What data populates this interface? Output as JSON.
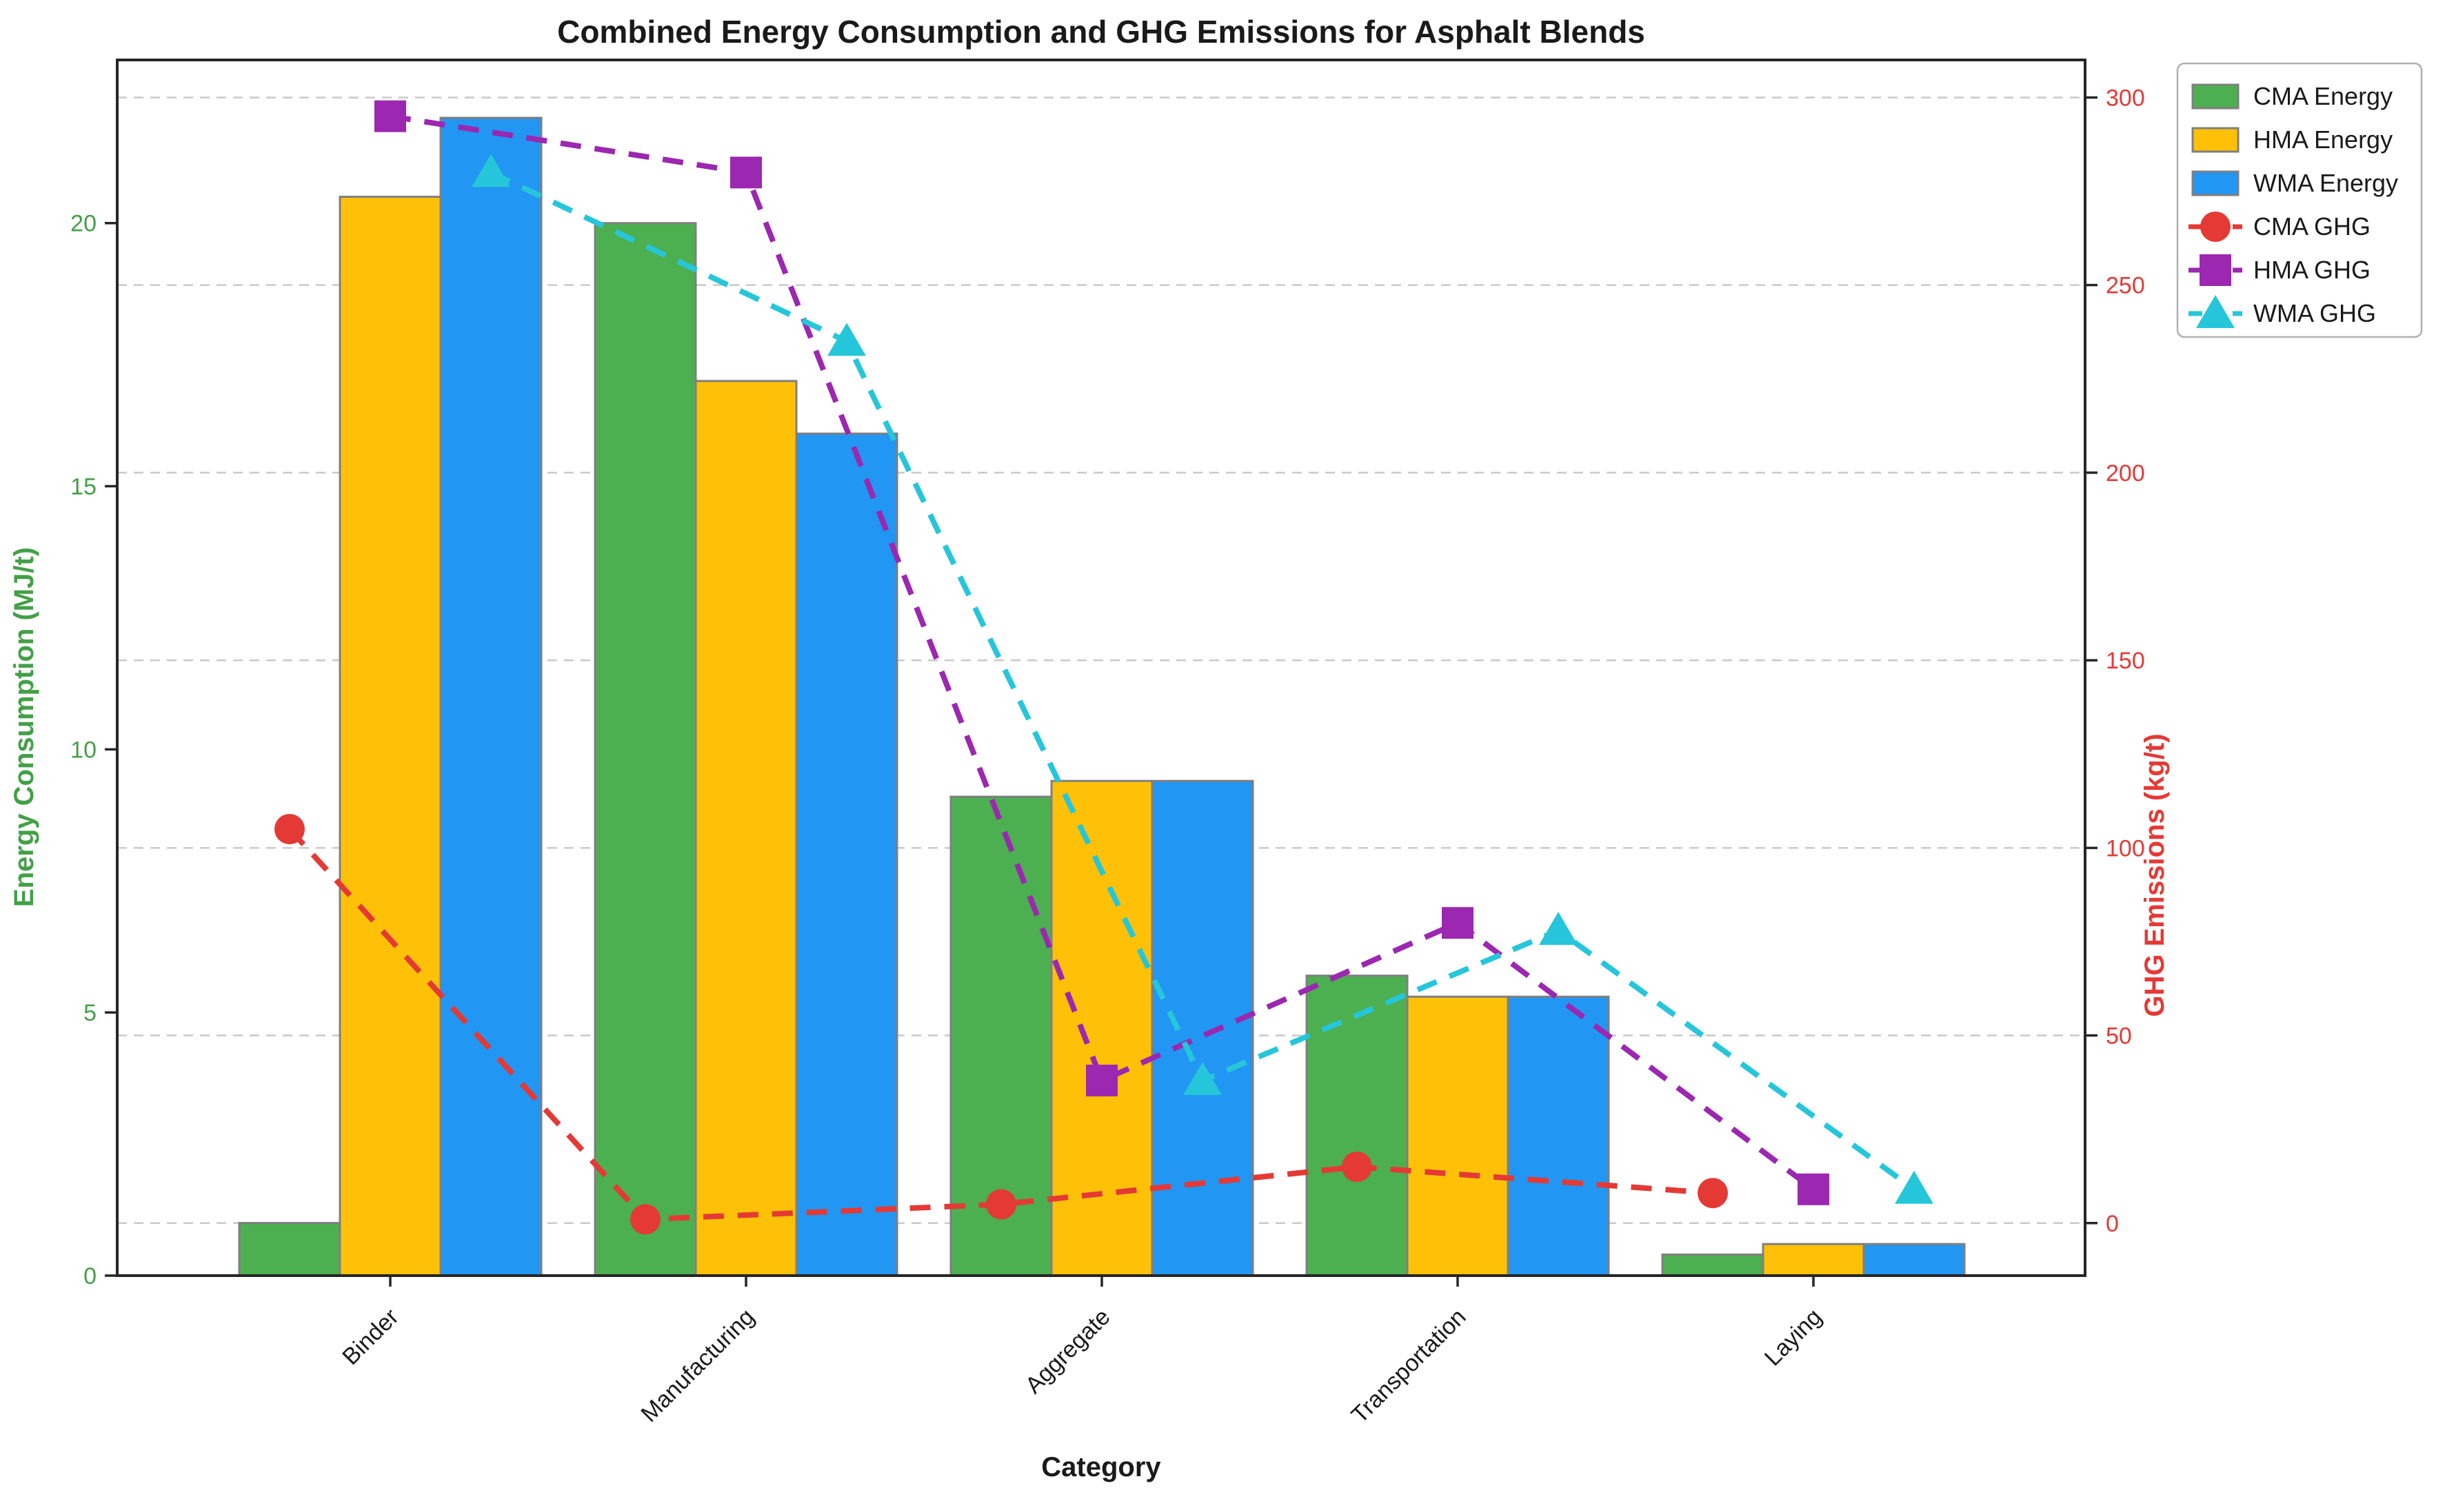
{
  "chart_data": {
    "type": "bar",
    "subtype": "dual-axis-grouped-bar-with-dashed-lines",
    "title": "Combined Energy Consumption and GHG Emissions for Asphalt Blends",
    "xlabel": "Category",
    "ylabel_left": "Energy Consumption (MJ/t)",
    "ylabel_right": "GHG Emissions (kg/t)",
    "categories": [
      "Binder",
      "Manufacturing",
      "Aggregate",
      "Transportation",
      "Laying"
    ],
    "bar_series": [
      {
        "name": "CMA Energy",
        "color": "#4CAF50",
        "values": [
          1.0,
          20.0,
          9.1,
          5.7,
          0.4
        ]
      },
      {
        "name": "HMA Energy",
        "color": "#FFC107",
        "values": [
          20.5,
          17.0,
          9.4,
          5.3,
          0.6
        ]
      },
      {
        "name": "WMA Energy",
        "color": "#2196F3",
        "values": [
          22.0,
          16.0,
          9.4,
          5.3,
          0.6
        ]
      }
    ],
    "line_series": [
      {
        "name": "CMA GHG",
        "color": "#E53935",
        "marker": "circle",
        "values": [
          105,
          1,
          5,
          15,
          8
        ]
      },
      {
        "name": "HMA GHG",
        "color": "#9C27B0",
        "marker": "square",
        "values": [
          295,
          280,
          38,
          80,
          9
        ]
      },
      {
        "name": "WMA GHG",
        "color": "#26C6DA",
        "marker": "triangle",
        "values": [
          280,
          235,
          38,
          78,
          9
        ]
      }
    ],
    "left_axis": {
      "ticks": [
        0,
        5,
        10,
        15,
        20
      ],
      "range": [
        0,
        23.1
      ],
      "tick_color": "#43A047"
    },
    "right_axis": {
      "ticks": [
        0,
        50,
        100,
        150,
        200,
        250,
        300
      ],
      "range": [
        -14,
        310
      ],
      "tick_color": "#E53935",
      "gridlines": "dashed"
    },
    "legend": {
      "position": "upper-right-outside",
      "entries": [
        "CMA Energy",
        "HMA Energy",
        "WMA Energy",
        "CMA GHG",
        "HMA GHG",
        "WMA GHG"
      ]
    },
    "style_colors": {
      "background": "#ffffff",
      "grid": "#c9c9c9",
      "bar_edge": "#7f7f7f",
      "spine": "#262626",
      "legend_border": "#b0b0b0",
      "x_tick_label": "#1a1a1a"
    }
  }
}
